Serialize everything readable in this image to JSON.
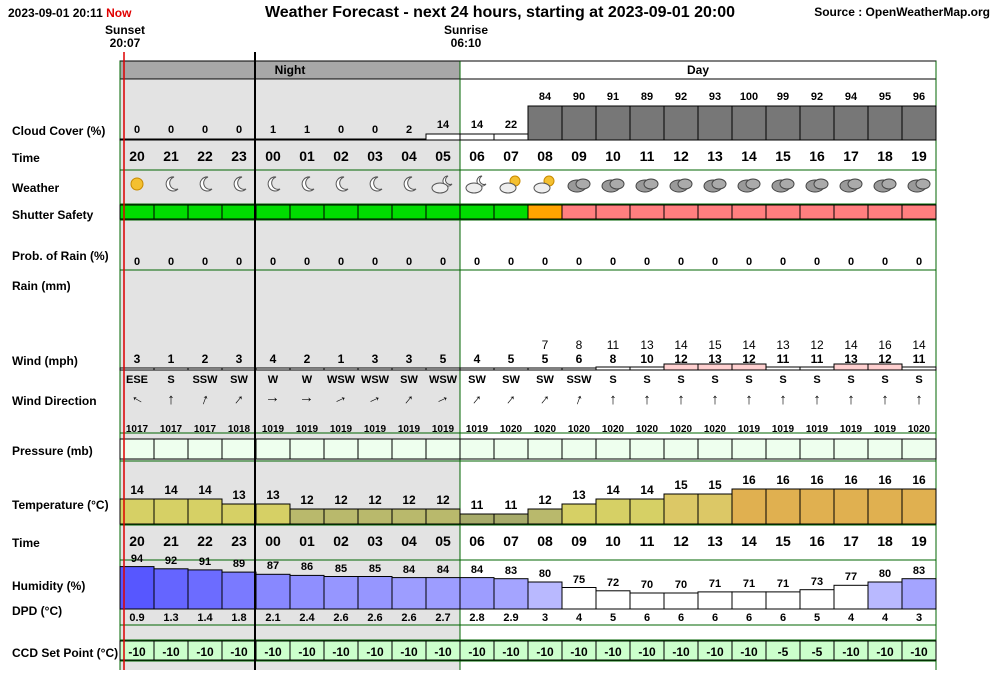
{
  "header": {
    "datetime": "2023-09-01 20:11",
    "now_label": "Now",
    "title": "Weather Forecast - next 24 hours, starting at 2023-09-01 20:00",
    "source": "Source : OpenWeatherMap.org"
  },
  "sun": {
    "sunset_label": "Sunset",
    "sunset_time": "20:07",
    "sunrise_label": "Sunrise",
    "sunrise_time": "06:10"
  },
  "periods": {
    "night": "Night",
    "day": "Day"
  },
  "row_labels": {
    "cloud": "Cloud Cover (%)",
    "time": "Time",
    "weather": "Weather",
    "shutter": "Shutter Safety",
    "rain_prob": "Prob. of Rain (%)",
    "rain_mm": "Rain (mm)",
    "wind": "Wind (mph)",
    "wind_dir": "Wind Direction",
    "pressure": "Pressure (mb)",
    "temperature": "Temperature (°C)",
    "time2": "Time",
    "humidity": "Humidity (%)",
    "dpd": "DPD (°C)",
    "ccd": "CCD Set Point (°C)"
  },
  "colors": {
    "night_bg": "#e3e3e3",
    "period_bar_night": "#a8a8a8",
    "cloud_dark": "#777777",
    "safe": "#00dd00",
    "caution": "#ffa500",
    "unsafe": "#ff7f7f",
    "grid_line": "#006400",
    "now_line": "#dd0000",
    "wind_high": "#ffd0d0",
    "pressure_bg": "#eeffee",
    "ccd_bg": "#ccffcc"
  },
  "chart_data": {
    "type": "table",
    "hours": [
      "20",
      "21",
      "22",
      "23",
      "00",
      "01",
      "02",
      "03",
      "04",
      "05",
      "06",
      "07",
      "08",
      "09",
      "10",
      "11",
      "12",
      "13",
      "14",
      "15",
      "16",
      "17",
      "18",
      "19"
    ],
    "cloud_cover": [
      0,
      0,
      0,
      0,
      1,
      1,
      0,
      0,
      2,
      14,
      14,
      22,
      84,
      90,
      91,
      89,
      92,
      93,
      100,
      99,
      92,
      94,
      95,
      96
    ],
    "weather_icons": [
      "sun-icon",
      "moon-icon",
      "moon-icon",
      "moon-icon",
      "moon-icon",
      "moon-icon",
      "moon-icon",
      "moon-icon",
      "moon-icon",
      "moon-cloud-icon",
      "moon-cloud-icon",
      "sun-cloud-icon",
      "sun-cloud-icon",
      "cloud-icon",
      "cloud-icon",
      "cloud-icon",
      "cloud-icon",
      "cloud-icon",
      "cloud-icon",
      "cloud-icon",
      "cloud-icon",
      "cloud-icon",
      "cloud-icon",
      "cloud-icon"
    ],
    "shutter_safety": [
      "safe",
      "safe",
      "safe",
      "safe",
      "safe",
      "safe",
      "safe",
      "safe",
      "safe",
      "safe",
      "safe",
      "safe",
      "caution",
      "unsafe",
      "unsafe",
      "unsafe",
      "unsafe",
      "unsafe",
      "unsafe",
      "unsafe",
      "unsafe",
      "unsafe",
      "unsafe",
      "unsafe"
    ],
    "rain_probability": [
      0,
      0,
      0,
      0,
      0,
      0,
      0,
      0,
      0,
      0,
      0,
      0,
      0,
      0,
      0,
      0,
      0,
      0,
      0,
      0,
      0,
      0,
      0,
      0
    ],
    "wind_gust": [
      "",
      "",
      "",
      "",
      "",
      "",
      "",
      "",
      "",
      "",
      "",
      "",
      "7",
      "8",
      "11",
      "13",
      "14",
      "15",
      "14",
      "13",
      "12",
      "14",
      "16",
      "14"
    ],
    "wind_speed": [
      3,
      1,
      2,
      3,
      4,
      2,
      1,
      3,
      3,
      5,
      4,
      5,
      5,
      6,
      8,
      10,
      12,
      13,
      12,
      11,
      11,
      13,
      12,
      11
    ],
    "wind_direction": [
      "ESE",
      "S",
      "SSW",
      "SW",
      "W",
      "W",
      "WSW",
      "WSW",
      "SW",
      "WSW",
      "SW",
      "SW",
      "SW",
      "SSW",
      "S",
      "S",
      "S",
      "S",
      "S",
      "S",
      "S",
      "S",
      "S",
      "S"
    ],
    "wind_arrow_deg": [
      -60,
      0,
      20,
      40,
      90,
      90,
      65,
      65,
      40,
      65,
      40,
      40,
      40,
      20,
      0,
      0,
      0,
      0,
      0,
      0,
      0,
      0,
      0,
      0
    ],
    "pressure": [
      1017,
      1017,
      1017,
      1018,
      1019,
      1019,
      1019,
      1019,
      1019,
      1019,
      1019,
      1020,
      1020,
      1020,
      1020,
      1020,
      1020,
      1020,
      1019,
      1019,
      1019,
      1019,
      1019,
      1020
    ],
    "temperature": [
      14,
      14,
      14,
      13,
      13,
      12,
      12,
      12,
      12,
      12,
      11,
      11,
      12,
      13,
      14,
      14,
      15,
      15,
      16,
      16,
      16,
      16,
      16,
      16
    ],
    "humidity": [
      94,
      92,
      91,
      89,
      87,
      86,
      85,
      85,
      84,
      84,
      84,
      83,
      80,
      75,
      72,
      70,
      70,
      71,
      71,
      71,
      73,
      77,
      80,
      83
    ],
    "dpd": [
      "0.9",
      "1.3",
      "1.4",
      "1.8",
      "2.1",
      "2.4",
      "2.6",
      "2.6",
      "2.6",
      "2.7",
      "2.8",
      "2.9",
      "3",
      "4",
      "5",
      "6",
      "6",
      "6",
      "6",
      "6",
      "5",
      "4",
      "4",
      "3"
    ],
    "ccd_set_point": [
      -10,
      -10,
      -10,
      -10,
      -10,
      -10,
      -10,
      -10,
      -10,
      -10,
      -10,
      -10,
      -10,
      -10,
      -10,
      -10,
      -10,
      -10,
      -10,
      -5,
      -5,
      -10,
      -10,
      -10
    ]
  }
}
